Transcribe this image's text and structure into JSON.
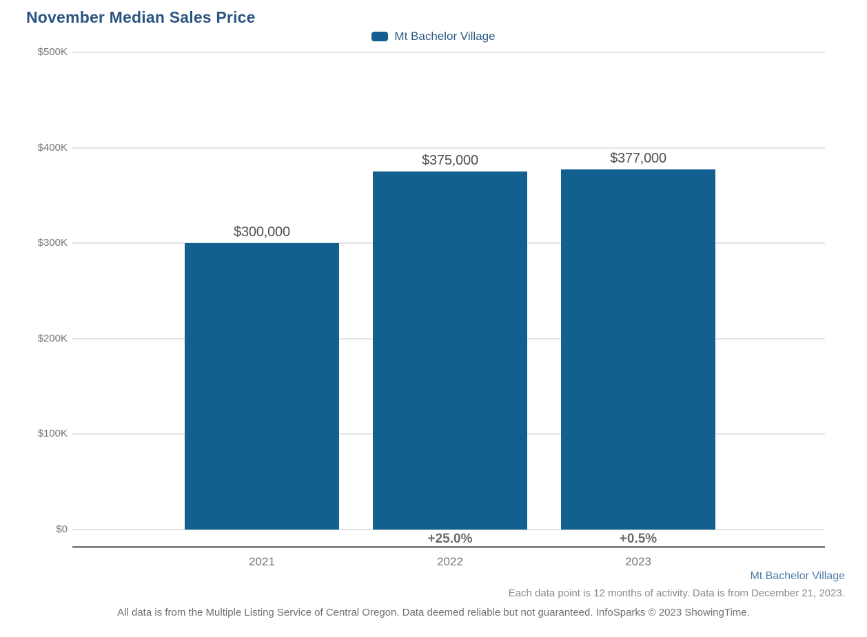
{
  "title": "November Median Sales Price",
  "legend": {
    "label": "Mt Bachelor Village",
    "swatch_color": "#135f90"
  },
  "chart_data": {
    "type": "bar",
    "title": "November Median Sales Price",
    "categories": [
      "2021",
      "2022",
      "2023"
    ],
    "series": [
      {
        "name": "Mt Bachelor Village",
        "values": [
          300000,
          375000,
          377000
        ],
        "color": "#135f90"
      }
    ],
    "value_labels": [
      "$300,000",
      "$375,000",
      "$377,000"
    ],
    "change_labels": [
      "",
      "+25.0%",
      "+0.5%"
    ],
    "xlabel": "",
    "ylabel": "",
    "ylim": [
      0,
      500000
    ],
    "ytick_step": 100000,
    "ytick_labels": [
      "$0",
      "$100K",
      "$200K",
      "$300K",
      "$400K",
      "$500K"
    ],
    "grid": true,
    "legend_position": "top-center"
  },
  "footer": {
    "series_name": "Mt Bachelor Village",
    "data_note": "Each data point is 12 months of activity. Data is from December 21, 2023.",
    "disclaimer": "All data is from the Multiple Listing Service of Central Oregon. Data deemed reliable but not guaranteed. InfoSparks © 2023 ShowingTime."
  },
  "colors": {
    "bar": "#135f90",
    "title_text": "#2b5580",
    "legend_text": "#2e5a85",
    "footer_series_text": "#4d7dab",
    "axis_text": "#757575",
    "value_text": "#4f4f4f",
    "gridline": "#e4e4e4",
    "axis_line": "#8e8e8e"
  }
}
